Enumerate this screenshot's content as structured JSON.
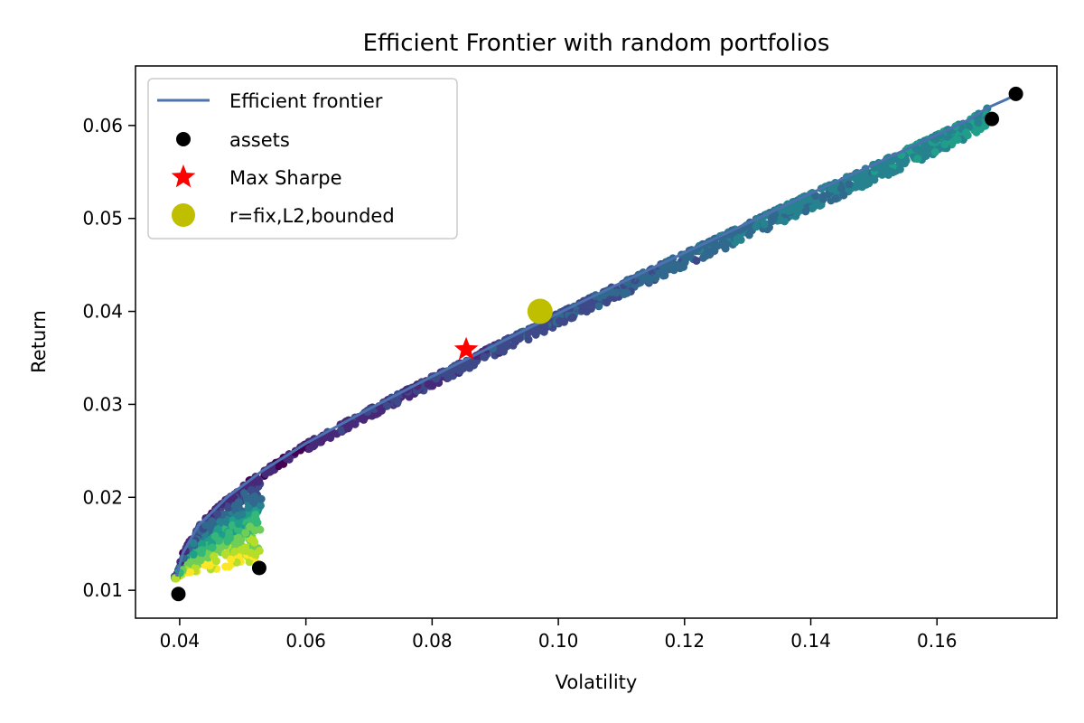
{
  "chart_data": {
    "type": "scatter",
    "title": "Efficient Frontier with random portfolios",
    "xlabel": "Volatility",
    "ylabel": "Return",
    "xlim": [
      0.033,
      0.179
    ],
    "ylim": [
      0.007,
      0.0664
    ],
    "xticks": [
      0.04,
      0.06,
      0.08,
      0.1,
      0.12,
      0.14,
      0.16
    ],
    "xtick_labels": [
      "0.04",
      "0.06",
      "0.08",
      "0.10",
      "0.12",
      "0.14",
      "0.16"
    ],
    "yticks": [
      0.01,
      0.02,
      0.03,
      0.04,
      0.05,
      0.06
    ],
    "ytick_labels": [
      "0.01",
      "0.02",
      "0.03",
      "0.04",
      "0.05",
      "0.06"
    ],
    "grid": false,
    "legend_position": "upper-left",
    "colormap": "viridis",
    "legend": [
      {
        "label": "Efficient frontier",
        "marker": "line",
        "color": "#4c72b0"
      },
      {
        "label": "assets",
        "marker": "circle",
        "color": "#000000"
      },
      {
        "label": "Max Sharpe",
        "marker": "star",
        "color": "#ff0000"
      },
      {
        "label": "r=fix,L2,bounded",
        "marker": "large-circle",
        "color": "#bfbf00"
      }
    ],
    "series": [
      {
        "name": "Efficient frontier",
        "kind": "line",
        "color": "#4c72b0",
        "x": [
          0.0395,
          0.0405,
          0.043,
          0.0475,
          0.053,
          0.06,
          0.07,
          0.08,
          0.09,
          0.1,
          0.11,
          0.12,
          0.13,
          0.14,
          0.15,
          0.16,
          0.165,
          0.168,
          0.171,
          0.1725
        ],
        "y": [
          0.0115,
          0.014,
          0.017,
          0.02,
          0.0228,
          0.0258,
          0.0295,
          0.033,
          0.0364,
          0.0398,
          0.0431,
          0.0463,
          0.0495,
          0.0527,
          0.0558,
          0.059,
          0.0606,
          0.0619,
          0.0628,
          0.0633
        ]
      },
      {
        "name": "assets",
        "kind": "scatter",
        "color": "#000000",
        "x": [
          0.0398,
          0.0526,
          0.1687,
          0.1725
        ],
        "y": [
          0.0096,
          0.0124,
          0.0607,
          0.0634
        ]
      },
      {
        "name": "Max Sharpe",
        "kind": "star",
        "color": "#ff0000",
        "x": [
          0.0854
        ],
        "y": [
          0.0359
        ]
      },
      {
        "name": "r=fix,L2,bounded",
        "kind": "large-circle",
        "color": "#bfbf00",
        "x": [
          0.0971
        ],
        "y": [
          0.04
        ]
      }
    ],
    "random_portfolios": {
      "count": 1500,
      "x_range": [
        0.0392,
        0.168
      ],
      "y_range": [
        0.0112,
        0.0625
      ],
      "color_scale": [
        "#440154",
        "#482878",
        "#3e4989",
        "#31688e",
        "#26828e",
        "#1f9e89",
        "#35b779",
        "#6ece58",
        "#b5de2b",
        "#fde725"
      ]
    }
  }
}
